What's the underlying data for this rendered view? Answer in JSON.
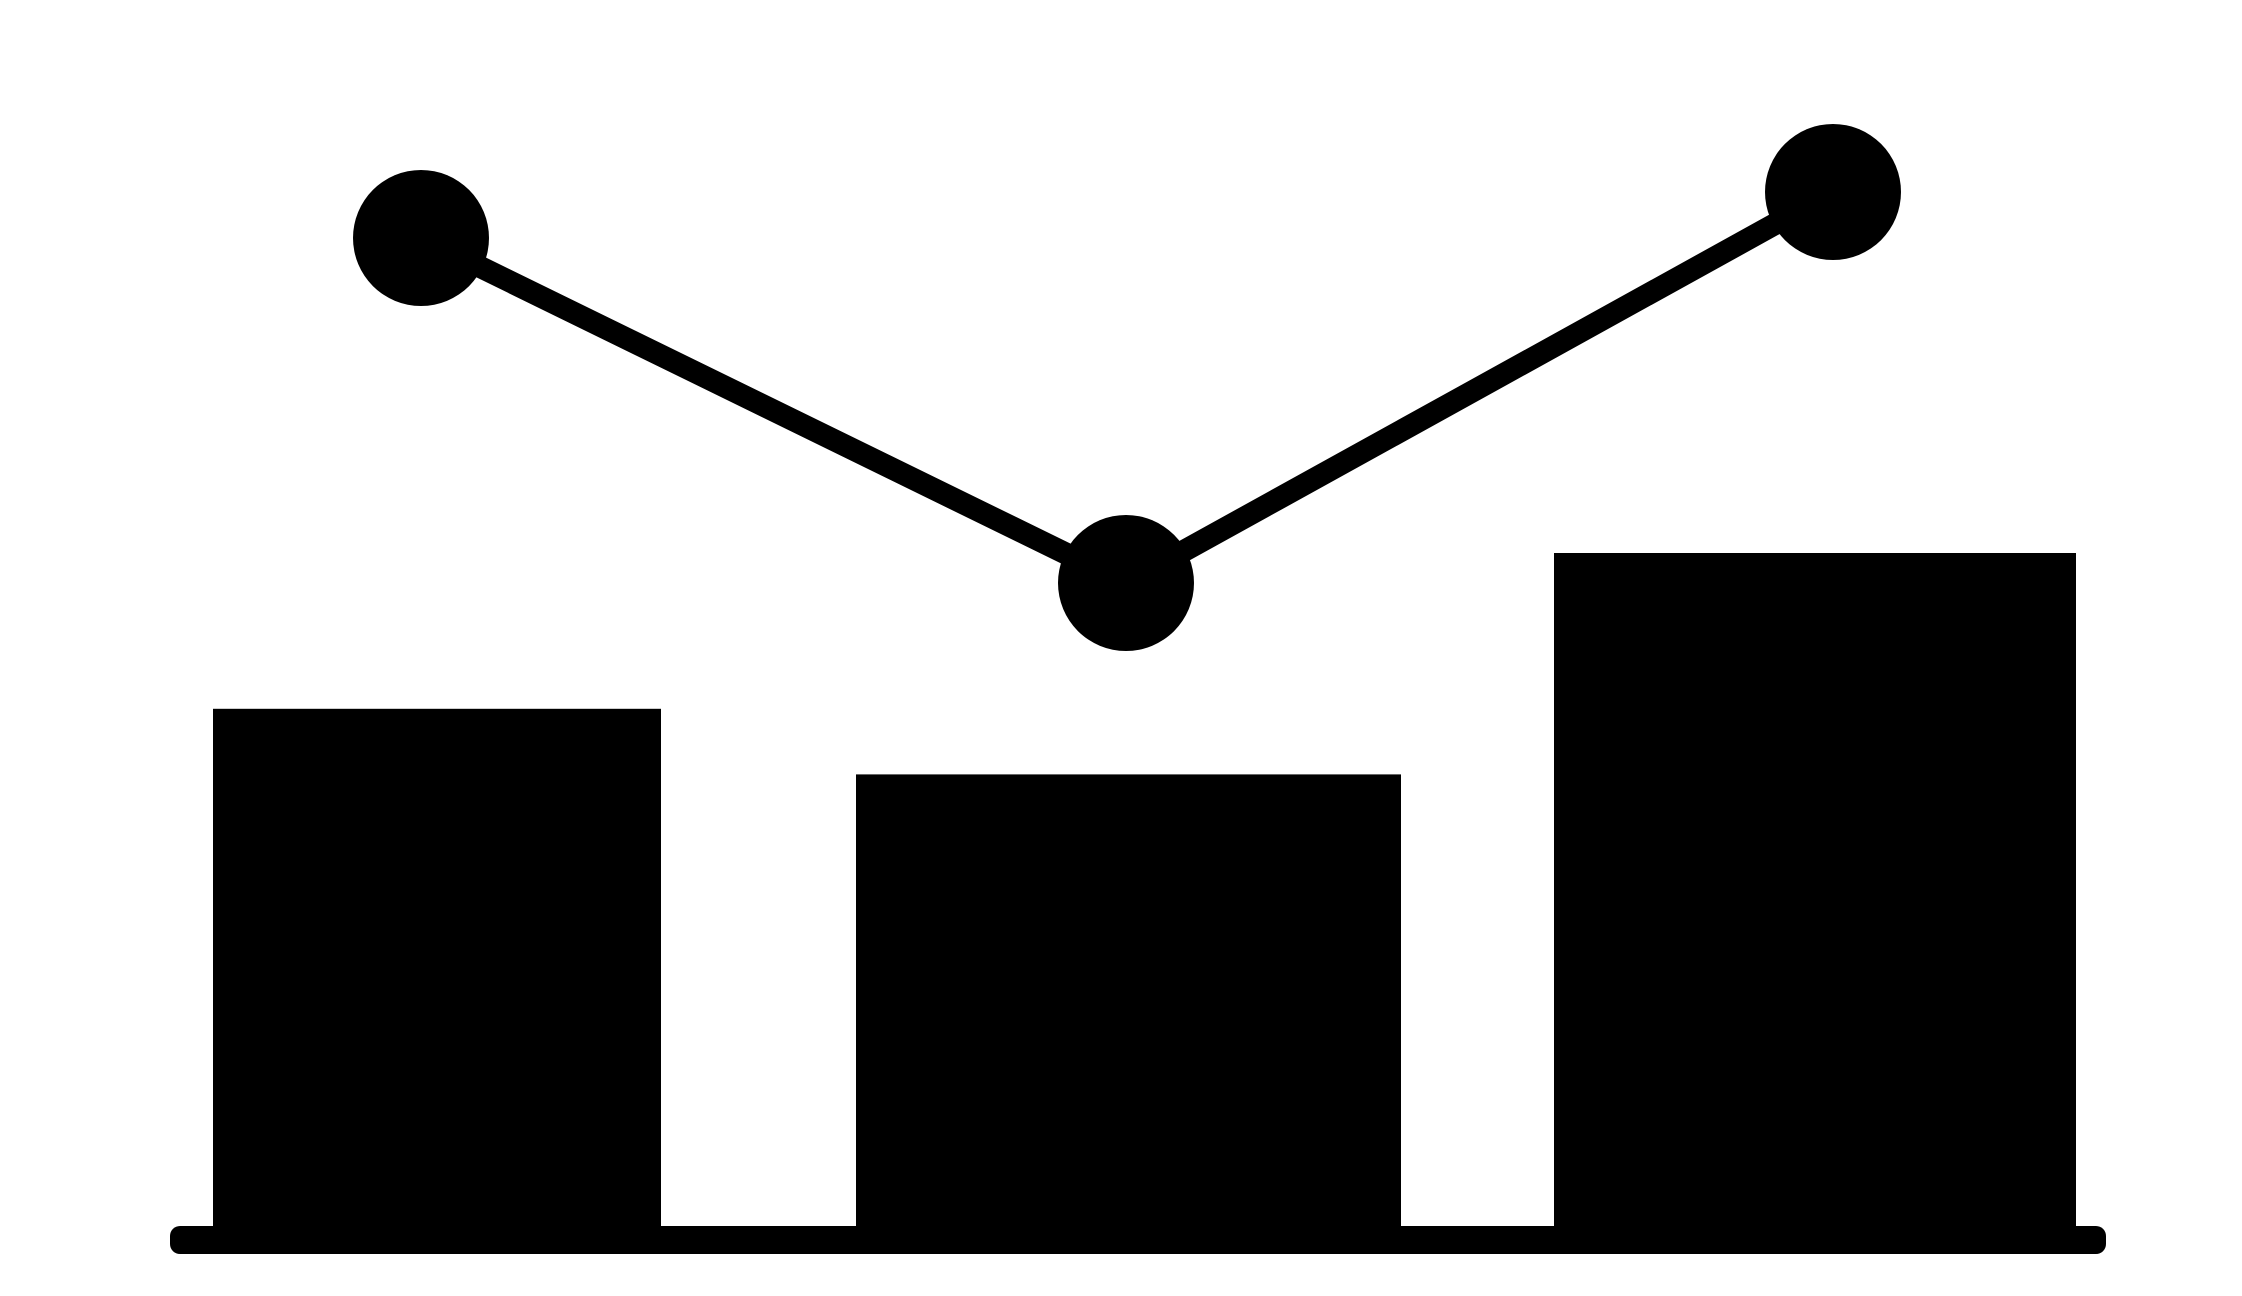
{
  "icon": {
    "name": "bar-line-combo-chart-icon",
    "foreground": "#000000",
    "background": "#ffffff",
    "bars": [
      0.66,
      0.58,
      0.85
    ],
    "line_points": [
      0.88,
      0.58,
      0.92
    ]
  }
}
